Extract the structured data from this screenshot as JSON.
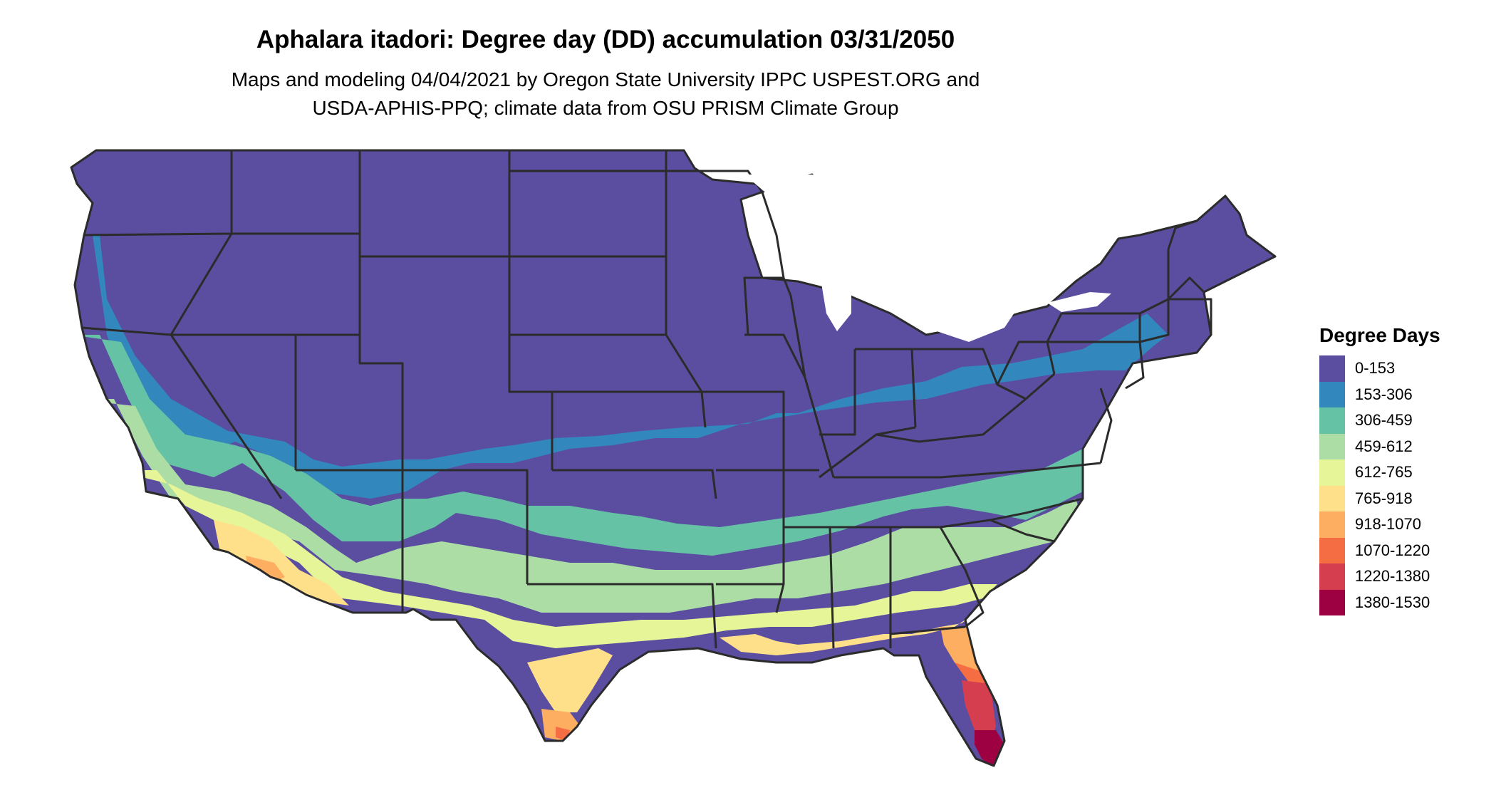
{
  "title": "Aphalara itadori: Degree day (DD) accumulation 03/31/2050",
  "subtitle_lines": [
    "Maps and modeling 04/04/2021 by Oregon State University IPPC USPEST.ORG and",
    "USDA-APHIS-PPQ; climate data from OSU PRISM Climate Group"
  ],
  "legend": {
    "title": "Degree Days",
    "items": [
      {
        "label": "0-153",
        "color": "#5b4ea1"
      },
      {
        "label": "153-306",
        "color": "#3288bd"
      },
      {
        "label": "306-459",
        "color": "#66c2a5"
      },
      {
        "label": "459-612",
        "color": "#abdda4"
      },
      {
        "label": "612-765",
        "color": "#e6f598"
      },
      {
        "label": "765-918",
        "color": "#fee08b"
      },
      {
        "label": "918-1070",
        "color": "#fdae61"
      },
      {
        "label": "1070-1220",
        "color": "#f46d43"
      },
      {
        "label": "1220-1380",
        "color": "#d53e4f"
      },
      {
        "label": "1380-1530",
        "color": "#9e0142"
      }
    ]
  },
  "colors": {
    "state_border": "#2b2b2b",
    "lakes": "#ffffff"
  }
}
